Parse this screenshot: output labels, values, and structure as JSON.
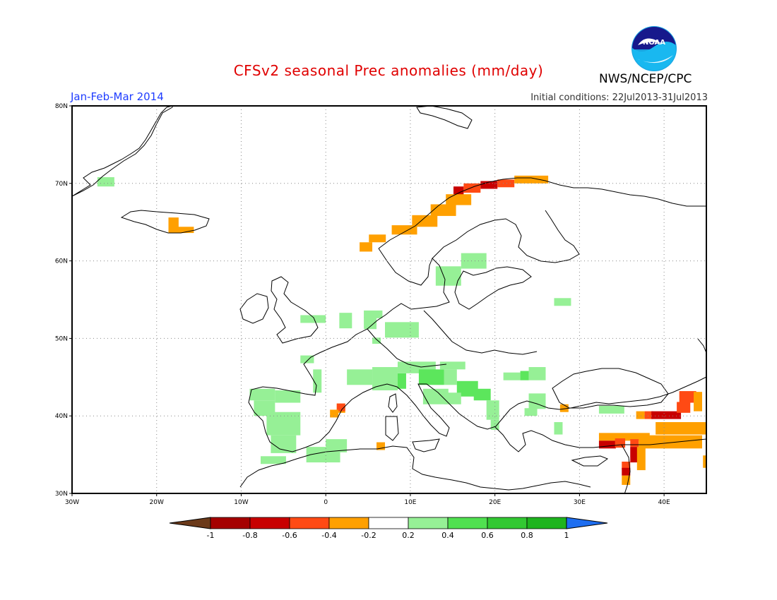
{
  "title": "CFSv2 seasonal Prec anomalies (mm/day)",
  "period": "Jan-Feb-Mar 2014",
  "initial_conditions": "Initial conditions: 22Jul2013-31Jul2013",
  "agency": "NWS/NCEP/CPC",
  "logo_text": "NOAA",
  "lon_labels": [
    "30W",
    "20W",
    "10W",
    "0",
    "10E",
    "20E",
    "30E",
    "40E"
  ],
  "lat_labels": [
    "30N",
    "40N",
    "50N",
    "60N",
    "70N",
    "80N"
  ],
  "lon_values": [
    -30,
    -20,
    -10,
    0,
    10,
    20,
    30,
    40
  ],
  "lat_values": [
    30,
    40,
    50,
    60,
    70,
    80
  ],
  "extent": {
    "lon": [
      -30,
      45
    ],
    "lat": [
      30,
      80
    ]
  },
  "colorbar": {
    "ticks": [
      "-1",
      "-0.8",
      "-0.6",
      "-0.4",
      "-0.2",
      "0.2",
      "0.4",
      "0.6",
      "0.8",
      "1"
    ],
    "colors": [
      "#6b3a1a",
      "#a50000",
      "#c80000",
      "#ff4a14",
      "#ffa000",
      "#ffffff",
      "#96f096",
      "#50e050",
      "#32c832",
      "#1eb41e",
      "#1e6ef0"
    ]
  },
  "anomaly_levels": {
    "light_green": "#96f096",
    "green": "#5ce65c",
    "orange": "#ffa000",
    "red_orange": "#ff4a14",
    "dark_red": "#c80000"
  },
  "anomaly_cells": [
    {
      "lon": -27,
      "lat": 69.6,
      "w": 2,
      "h": 1.2,
      "level": "light_green"
    },
    {
      "lon": -18.6,
      "lat": 64.3,
      "w": 1.2,
      "h": 1.3,
      "level": "orange"
    },
    {
      "lon": -18.6,
      "lat": 63.6,
      "w": 3,
      "h": 0.8,
      "level": "orange"
    },
    {
      "lon": 15.1,
      "lat": 68.4,
      "w": 1.2,
      "h": 1.2,
      "level": "dark_red"
    },
    {
      "lon": 16.3,
      "lat": 68.8,
      "w": 2,
      "h": 1.2,
      "level": "red_orange"
    },
    {
      "lon": 18.3,
      "lat": 69.3,
      "w": 2,
      "h": 1,
      "level": "dark_red"
    },
    {
      "lon": 20.3,
      "lat": 69.5,
      "w": 2,
      "h": 1,
      "level": "red_orange"
    },
    {
      "lon": 22.3,
      "lat": 70,
      "w": 4,
      "h": 1,
      "level": "orange"
    },
    {
      "lon": 14.2,
      "lat": 67.2,
      "w": 3,
      "h": 1.4,
      "level": "orange"
    },
    {
      "lon": 12.4,
      "lat": 65.8,
      "w": 3,
      "h": 1.5,
      "level": "orange"
    },
    {
      "lon": 10.2,
      "lat": 64.4,
      "w": 3,
      "h": 1.5,
      "level": "orange"
    },
    {
      "lon": 7.8,
      "lat": 63.4,
      "w": 3,
      "h": 1.2,
      "level": "orange"
    },
    {
      "lon": 5.1,
      "lat": 62.4,
      "w": 2,
      "h": 1.0,
      "level": "orange"
    },
    {
      "lon": 4.0,
      "lat": 61.2,
      "w": 1.5,
      "h": 1.2,
      "level": "orange"
    },
    {
      "lon": 16,
      "lat": 59,
      "w": 3,
      "h": 2,
      "level": "light_green"
    },
    {
      "lon": 13,
      "lat": 56.8,
      "w": 3,
      "h": 2.5,
      "level": "light_green"
    },
    {
      "lon": 27,
      "lat": 54.2,
      "w": 2,
      "h": 1,
      "level": "light_green"
    },
    {
      "lon": -3,
      "lat": 52,
      "w": 3,
      "h": 1,
      "level": "light_green"
    },
    {
      "lon": 1.6,
      "lat": 51.3,
      "w": 1.5,
      "h": 2,
      "level": "light_green"
    },
    {
      "lon": 4.5,
      "lat": 52.6,
      "w": 2.2,
      "h": 1,
      "level": "light_green"
    },
    {
      "lon": 4.5,
      "lat": 51.2,
      "w": 1.5,
      "h": 1.6,
      "level": "light_green"
    },
    {
      "lon": 7,
      "lat": 50.1,
      "w": 4,
      "h": 2,
      "level": "light_green"
    },
    {
      "lon": 5.5,
      "lat": 49.3,
      "w": 1,
      "h": 0.8,
      "level": "light_green"
    },
    {
      "lon": -3,
      "lat": 46.8,
      "w": 1.6,
      "h": 1,
      "level": "light_green"
    },
    {
      "lon": -1.5,
      "lat": 43,
      "w": 1,
      "h": 3,
      "level": "light_green"
    },
    {
      "lon": 2.5,
      "lat": 44,
      "w": 3,
      "h": 2,
      "level": "light_green"
    },
    {
      "lon": 5.5,
      "lat": 43.3,
      "w": 3,
      "h": 3,
      "level": "light_green"
    },
    {
      "lon": 8.5,
      "lat": 43.5,
      "w": 1,
      "h": 2,
      "level": "green"
    },
    {
      "lon": 8.5,
      "lat": 45.5,
      "w": 4.5,
      "h": 1.5,
      "level": "light_green"
    },
    {
      "lon": 11,
      "lat": 44,
      "w": 3,
      "h": 2,
      "level": "green"
    },
    {
      "lon": 13.5,
      "lat": 46,
      "w": 3,
      "h": 1,
      "level": "light_green"
    },
    {
      "lon": 14,
      "lat": 44,
      "w": 1.5,
      "h": 2,
      "level": "light_green"
    },
    {
      "lon": 15.5,
      "lat": 42.5,
      "w": 2.5,
      "h": 2,
      "level": "green"
    },
    {
      "lon": 17.5,
      "lat": 42,
      "w": 2,
      "h": 1.5,
      "level": "green"
    },
    {
      "lon": 11.5,
      "lat": 41.5,
      "w": 3,
      "h": 2,
      "level": "light_green"
    },
    {
      "lon": 14,
      "lat": 41.5,
      "w": 2,
      "h": 1.5,
      "level": "light_green"
    },
    {
      "lon": 19,
      "lat": 39.5,
      "w": 1.5,
      "h": 2.5,
      "level": "light_green"
    },
    {
      "lon": 19.5,
      "lat": 38.2,
      "w": 1,
      "h": 1.3,
      "level": "light_green"
    },
    {
      "lon": 21,
      "lat": 44.6,
      "w": 2,
      "h": 1,
      "level": "light_green"
    },
    {
      "lon": 23,
      "lat": 44.6,
      "w": 1,
      "h": 1.2,
      "level": "green"
    },
    {
      "lon": 24,
      "lat": 44.6,
      "w": 2,
      "h": 1.7,
      "level": "light_green"
    },
    {
      "lon": 24,
      "lat": 40.9,
      "w": 2,
      "h": 2,
      "level": "light_green"
    },
    {
      "lon": 23.5,
      "lat": 40,
      "w": 1.5,
      "h": 1,
      "level": "light_green"
    },
    {
      "lon": 27,
      "lat": 37.6,
      "w": 1,
      "h": 1.6,
      "level": "light_green"
    },
    {
      "lon": 32.3,
      "lat": 40.3,
      "w": 3,
      "h": 1,
      "level": "light_green"
    },
    {
      "lon": -9,
      "lat": 42,
      "w": 3,
      "h": 1.5,
      "level": "light_green"
    },
    {
      "lon": -6,
      "lat": 41.7,
      "w": 3,
      "h": 1.6,
      "level": "light_green"
    },
    {
      "lon": -8.5,
      "lat": 40,
      "w": 2.5,
      "h": 2,
      "level": "light_green"
    },
    {
      "lon": -7,
      "lat": 37.5,
      "w": 4,
      "h": 3,
      "level": "light_green"
    },
    {
      "lon": -6.5,
      "lat": 35.2,
      "w": 3,
      "h": 2.3,
      "level": "light_green"
    },
    {
      "lon": -7.7,
      "lat": 33.8,
      "w": 3,
      "h": 1,
      "level": "light_green"
    },
    {
      "lon": -2.3,
      "lat": 34,
      "w": 4,
      "h": 2,
      "level": "light_green"
    },
    {
      "lon": 0,
      "lat": 35.3,
      "w": 2.5,
      "h": 1.7,
      "level": "light_green"
    },
    {
      "lon": 1.3,
      "lat": 40.4,
      "w": 1,
      "h": 1.2,
      "level": "orange"
    },
    {
      "lon": 1.3,
      "lat": 40.6,
      "w": 1,
      "h": 1,
      "level": "red_orange"
    },
    {
      "lon": 0.5,
      "lat": 39.8,
      "w": 1,
      "h": 1,
      "level": "orange"
    },
    {
      "lon": 6,
      "lat": 35.6,
      "w": 1,
      "h": 1,
      "level": "orange"
    },
    {
      "lon": 27.7,
      "lat": 40.5,
      "w": 1,
      "h": 1,
      "level": "orange"
    },
    {
      "lon": 32.3,
      "lat": 36.8,
      "w": 6,
      "h": 1,
      "level": "orange"
    },
    {
      "lon": 32.3,
      "lat": 35.8,
      "w": 2,
      "h": 1,
      "level": "dark_red"
    },
    {
      "lon": 34.2,
      "lat": 35.9,
      "w": 1.2,
      "h": 1.2,
      "level": "red_orange"
    },
    {
      "lon": 36,
      "lat": 36,
      "w": 1,
      "h": 1,
      "level": "red_orange"
    },
    {
      "lon": 37,
      "lat": 35.8,
      "w": 7.5,
      "h": 1.7,
      "level": "orange"
    },
    {
      "lon": 36,
      "lat": 34,
      "w": 1,
      "h": 2,
      "level": "dark_red"
    },
    {
      "lon": 36.8,
      "lat": 33,
      "w": 1,
      "h": 3,
      "level": "orange"
    },
    {
      "lon": 35,
      "lat": 33.1,
      "w": 1,
      "h": 1,
      "level": "red_orange"
    },
    {
      "lon": 35,
      "lat": 32.3,
      "w": 1,
      "h": 1,
      "level": "dark_red"
    },
    {
      "lon": 35,
      "lat": 31.1,
      "w": 1,
      "h": 1.2,
      "level": "orange"
    },
    {
      "lon": 39,
      "lat": 37.6,
      "w": 6,
      "h": 1.6,
      "level": "orange"
    },
    {
      "lon": 36.7,
      "lat": 39.6,
      "w": 1,
      "h": 1,
      "level": "orange"
    },
    {
      "lon": 37.7,
      "lat": 39.6,
      "w": 1,
      "h": 1,
      "level": "red_orange"
    },
    {
      "lon": 38.5,
      "lat": 39.6,
      "w": 3.5,
      "h": 1,
      "level": "dark_red"
    },
    {
      "lon": 41.5,
      "lat": 40.4,
      "w": 1.6,
      "h": 1.4,
      "level": "red_orange"
    },
    {
      "lon": 41.8,
      "lat": 41.7,
      "w": 2,
      "h": 1.5,
      "level": "red_orange"
    },
    {
      "lon": 43.5,
      "lat": 40.6,
      "w": 1,
      "h": 2.5,
      "level": "orange"
    },
    {
      "lon": 44.6,
      "lat": 33.3,
      "w": 0.4,
      "h": 1.6,
      "level": "orange"
    }
  ]
}
